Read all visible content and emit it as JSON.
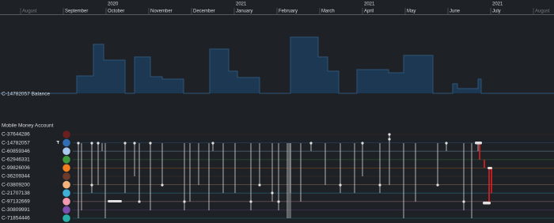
{
  "timeline": {
    "months": [
      {
        "name": "August"
      },
      {
        "name": "September"
      },
      {
        "name": "October",
        "year": "2020"
      },
      {
        "name": "November"
      },
      {
        "name": "December"
      },
      {
        "name": "January",
        "year": "2021"
      },
      {
        "name": "February"
      },
      {
        "name": "March"
      },
      {
        "name": "April",
        "year": "2021"
      },
      {
        "name": "May"
      },
      {
        "name": "June"
      },
      {
        "name": "July",
        "year": "2021"
      },
      {
        "name": "August"
      }
    ]
  },
  "balance_label": "C-14782057 Balance",
  "accounts_header": "Mobile Money Account",
  "accounts": [
    {
      "id": "C-37644286",
      "color": "#6b1f1f"
    },
    {
      "id": "C-14782057",
      "color": "#2f6db5"
    },
    {
      "id": "C-60859346",
      "color": "#a9c9ef"
    },
    {
      "id": "C-62946331",
      "color": "#3c9a3c"
    },
    {
      "id": "C-99826006",
      "color": "#f07d1e"
    },
    {
      "id": "C-36209344",
      "color": "#6e3b2b"
    },
    {
      "id": "C-03809200",
      "color": "#f5b27a"
    },
    {
      "id": "C-21707138",
      "color": "#3fb0d8"
    },
    {
      "id": "C-97132669",
      "color": "#f29ab0"
    },
    {
      "id": "C-30809991",
      "color": "#7d4fb0"
    },
    {
      "id": "C-71854446",
      "color": "#26b0a8"
    }
  ]
}
